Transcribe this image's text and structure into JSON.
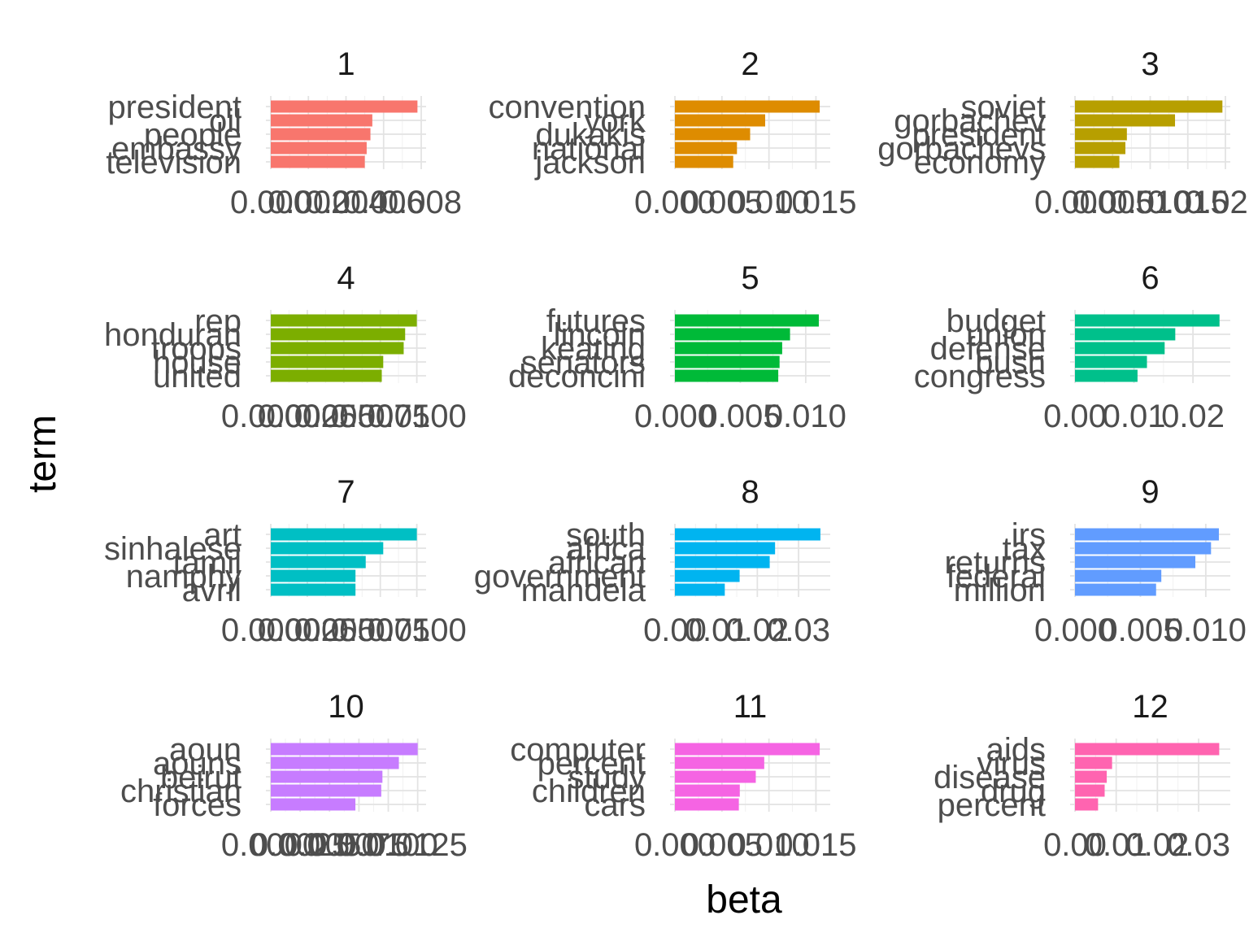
{
  "chart_data": {
    "type": "bar",
    "orientation": "horizontal",
    "xlabel": "beta",
    "ylabel": "term",
    "facets": [
      {
        "title": "1",
        "colour": "#F8766D",
        "terms": [
          "president",
          "oil",
          "people",
          "embassy",
          "television"
        ],
        "values": [
          0.0078,
          0.0054,
          0.0053,
          0.0051,
          0.005
        ],
        "xlim": [
          0,
          0.008
        ],
        "ticks": [
          "0.000",
          "0.002",
          "0.004",
          "0.006",
          "0.008"
        ],
        "tick_values": [
          0,
          0.002,
          0.004,
          0.006,
          0.008
        ]
      },
      {
        "title": "2",
        "colour": "#DE8C00",
        "terms": [
          "convention",
          "york",
          "dukakis",
          "national",
          "jackson"
        ],
        "values": [
          0.0154,
          0.0096,
          0.008,
          0.0066,
          0.0062
        ],
        "xlim": [
          0,
          0.016
        ],
        "ticks": [
          "0.000",
          "0.005",
          "0.010",
          "0.015"
        ],
        "tick_values": [
          0,
          0.005,
          0.01,
          0.015
        ]
      },
      {
        "title": "3",
        "colour": "#B79F00",
        "terms": [
          "soviet",
          "gorbachev",
          "president",
          "gorbachevs",
          "economy"
        ],
        "values": [
          0.0196,
          0.0133,
          0.0069,
          0.0067,
          0.0059
        ],
        "xlim": [
          0,
          0.02
        ],
        "ticks": [
          "0.000",
          "0.005",
          "0.010",
          "0.015",
          "0.020"
        ],
        "tick_values": [
          0,
          0.005,
          0.01,
          0.015,
          0.02
        ]
      },
      {
        "title": "4",
        "colour": "#7CAE00",
        "terms": [
          "rep",
          "honduran",
          "troops",
          "house",
          "united"
        ],
        "values": [
          0.01,
          0.0092,
          0.0091,
          0.0077,
          0.0076
        ],
        "xlim": [
          0,
          0.0103
        ],
        "ticks": [
          "0.0000",
          "0.0025",
          "0.0050",
          "0.0075",
          "0.0100"
        ],
        "tick_values": [
          0,
          0.0025,
          0.005,
          0.0075,
          0.01
        ]
      },
      {
        "title": "5",
        "colour": "#00BA38",
        "terms": [
          "futures",
          "lincoln",
          "keating",
          "senators",
          "deconcini"
        ],
        "values": [
          0.011,
          0.0088,
          0.0082,
          0.008,
          0.0079
        ],
        "xlim": [
          0,
          0.0115
        ],
        "ticks": [
          "0.000",
          "0.005",
          "0.010"
        ],
        "tick_values": [
          0,
          0.005,
          0.01
        ]
      },
      {
        "title": "6",
        "colour": "#00C08B",
        "terms": [
          "budget",
          "union",
          "defense",
          "bush",
          "congress"
        ],
        "values": [
          0.0245,
          0.017,
          0.0152,
          0.0122,
          0.0106
        ],
        "xlim": [
          0,
          0.0255
        ],
        "ticks": [
          "0.00",
          "0.01",
          "0.02"
        ],
        "tick_values": [
          0,
          0.01,
          0.02
        ]
      },
      {
        "title": "7",
        "colour": "#00BFC4",
        "terms": [
          "art",
          "sinhalese",
          "tamil",
          "namphy",
          "avril"
        ],
        "values": [
          0.01,
          0.0077,
          0.0065,
          0.0058,
          0.0058
        ],
        "xlim": [
          0,
          0.0103
        ],
        "ticks": [
          "0.0000",
          "0.0025",
          "0.0050",
          "0.0075",
          "0.0100"
        ],
        "tick_values": [
          0,
          0.0025,
          0.005,
          0.0075,
          0.01
        ]
      },
      {
        "title": "8",
        "colour": "#00B4F0",
        "terms": [
          "south",
          "africa",
          "african",
          "government",
          "mandela"
        ],
        "values": [
          0.0353,
          0.0243,
          0.023,
          0.0157,
          0.0121
        ],
        "xlim": [
          0,
          0.0365
        ],
        "ticks": [
          "0.00",
          "0.01",
          "0.02",
          "0.03"
        ],
        "tick_values": [
          0,
          0.01,
          0.02,
          0.03
        ]
      },
      {
        "title": "9",
        "colour": "#619CFF",
        "terms": [
          "irs",
          "tax",
          "returns",
          "federal",
          "million"
        ],
        "values": [
          0.011,
          0.0104,
          0.0092,
          0.0066,
          0.0062
        ],
        "xlim": [
          0,
          0.0115
        ],
        "ticks": [
          "0.000",
          "0.005",
          "0.010"
        ],
        "tick_values": [
          0,
          0.005,
          0.01
        ]
      },
      {
        "title": "10",
        "colour": "#C77CFF",
        "terms": [
          "aoun",
          "aouns",
          "beirut",
          "christian",
          "forces"
        ],
        "values": [
          0.0125,
          0.0109,
          0.0095,
          0.0094,
          0.0072
        ],
        "xlim": [
          0,
          0.0128
        ],
        "ticks": [
          "0.0000",
          "0.0025",
          "0.0050",
          "0.0075",
          "0.0100",
          "0.0125"
        ],
        "tick_values": [
          0,
          0.0025,
          0.005,
          0.0075,
          0.01,
          0.0125
        ]
      },
      {
        "title": "11",
        "colour": "#F564E3",
        "terms": [
          "computer",
          "percent",
          "study",
          "children",
          "cars"
        ],
        "values": [
          0.0154,
          0.0095,
          0.0086,
          0.0069,
          0.0068
        ],
        "xlim": [
          0,
          0.016
        ],
        "ticks": [
          "0.000",
          "0.005",
          "0.010",
          "0.015"
        ],
        "tick_values": [
          0,
          0.005,
          0.01,
          0.015
        ]
      },
      {
        "title": "12",
        "colour": "#FF64B0",
        "terms": [
          "aids",
          "virus",
          "disease",
          "drug",
          "percent"
        ],
        "values": [
          0.035,
          0.009,
          0.0077,
          0.0072,
          0.0056
        ],
        "xlim": [
          0,
          0.0365
        ],
        "ticks": [
          "0.00",
          "0.01",
          "0.02",
          "0.03"
        ],
        "tick_values": [
          0,
          0.01,
          0.02,
          0.03
        ]
      }
    ]
  }
}
